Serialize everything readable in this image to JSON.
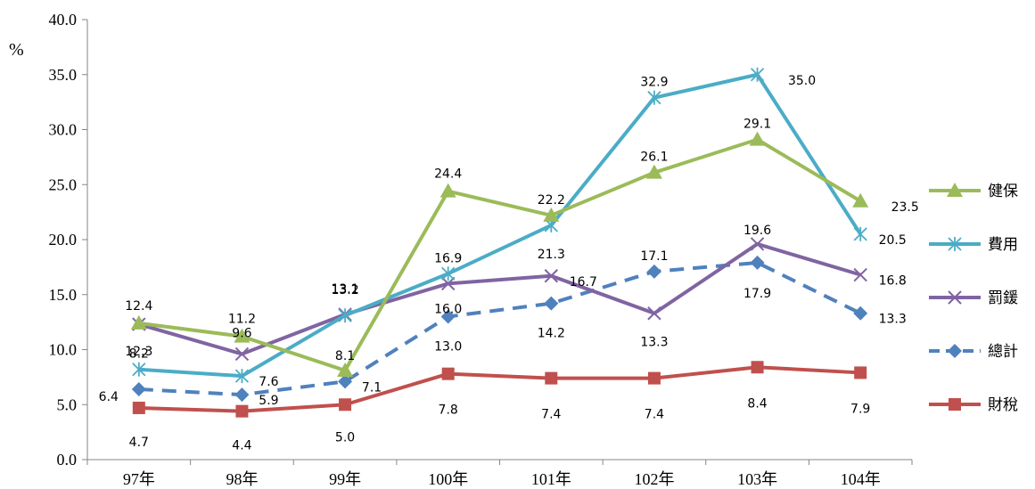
{
  "chart_data": {
    "type": "line",
    "ylabel": "%",
    "ylim": [
      0,
      40
    ],
    "yticks": [
      "0.0",
      "5.0",
      "10.0",
      "15.0",
      "20.0",
      "25.0",
      "30.0",
      "35.0",
      "40.0"
    ],
    "categories": [
      "97年",
      "98年",
      "99年",
      "100年",
      "101年",
      "102年",
      "103年",
      "104年"
    ],
    "grid": false,
    "legend_position": "right",
    "series": [
      {
        "name": "健保",
        "color": "#9BBB59",
        "marker": "triangle",
        "dashed": false,
        "values": [
          12.4,
          11.2,
          8.1,
          24.4,
          22.2,
          26.1,
          29.1,
          23.5
        ],
        "labels": [
          "12.4",
          "11.2",
          "8.1",
          "24.4",
          "22.2",
          "26.1",
          "29.1",
          "23.5"
        ]
      },
      {
        "name": "費用",
        "color": "#4BACC6",
        "marker": "asterisk",
        "dashed": false,
        "values": [
          8.2,
          7.6,
          13.1,
          16.9,
          21.3,
          32.9,
          35.0,
          20.5
        ],
        "labels": [
          "8.2",
          "7.6",
          "13.1",
          "16.9",
          "21.3",
          "32.9",
          "35.0",
          "20.5"
        ]
      },
      {
        "name": "罰鍰",
        "color": "#8064A2",
        "marker": "x",
        "dashed": false,
        "values": [
          12.3,
          9.6,
          13.2,
          16.0,
          16.7,
          13.3,
          19.6,
          16.8
        ],
        "labels": [
          "12.3",
          "9.6",
          "13.2",
          "16.0",
          "16.7",
          "13.3",
          "19.6",
          "16.8"
        ]
      },
      {
        "name": "總計",
        "color": "#4F81BD",
        "marker": "diamond",
        "dashed": true,
        "values": [
          6.4,
          5.9,
          7.1,
          13.0,
          14.2,
          17.1,
          17.9,
          13.3
        ],
        "labels": [
          "6.4",
          "5.9",
          "7.1",
          "13.0",
          "14.2",
          "17.1",
          "17.9",
          "13.3"
        ]
      },
      {
        "name": "財稅",
        "color": "#C0504D",
        "marker": "square",
        "dashed": false,
        "values": [
          4.7,
          4.4,
          5.0,
          7.8,
          7.4,
          7.4,
          8.4,
          7.9
        ],
        "labels": [
          "4.7",
          "4.4",
          "5.0",
          "7.8",
          "7.4",
          "7.4",
          "8.4",
          "7.9"
        ]
      }
    ]
  }
}
